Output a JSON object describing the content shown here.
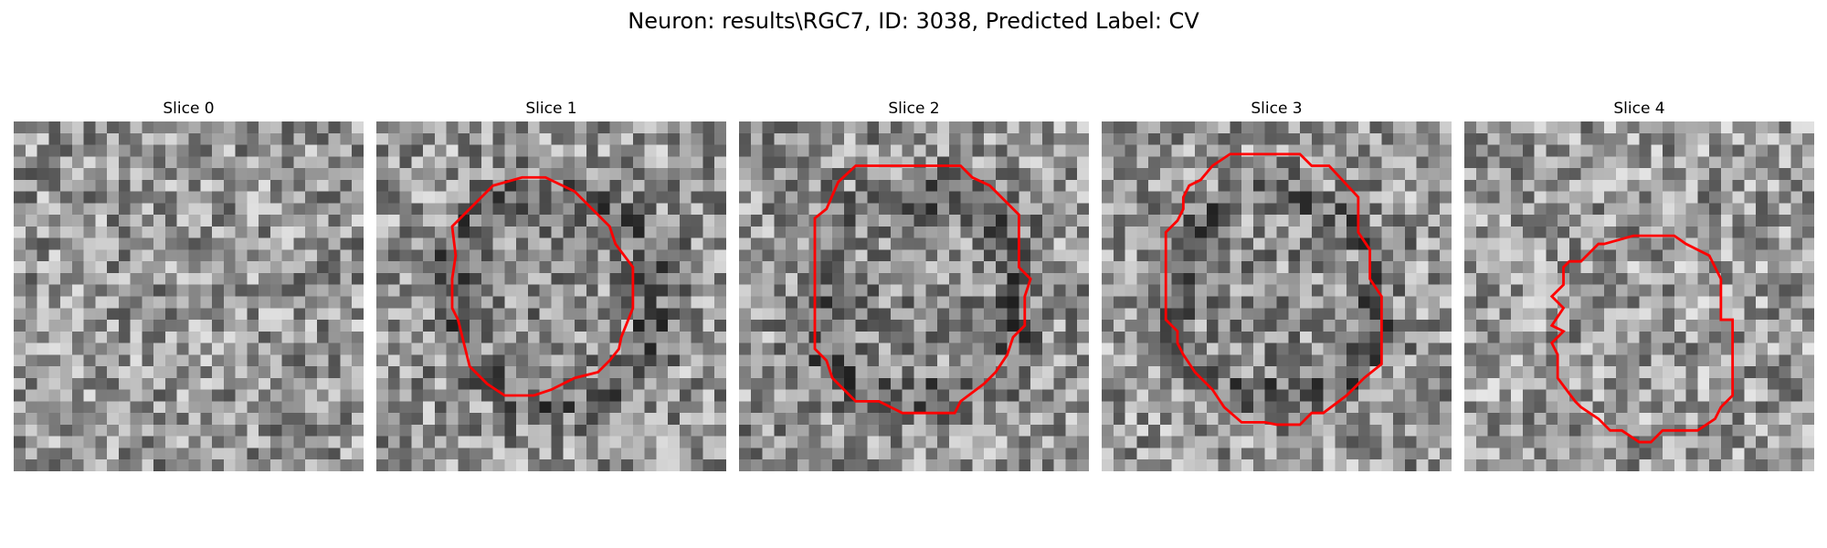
{
  "figure": {
    "title": "Neuron: results\\RGC7, ID: 3038, Predicted Label: CV"
  },
  "colors": {
    "contour": "#ff0000",
    "background": "#ffffff"
  },
  "grid": {
    "cells": 30
  },
  "panels": [
    {
      "title": "Slice 0",
      "seed": 11,
      "has_contour": false,
      "mean_gray": 150,
      "ring": false,
      "contour": []
    },
    {
      "title": "Slice 1",
      "seed": 23,
      "has_contour": true,
      "mean_gray": 140,
      "ring": true,
      "contour": [
        [
          10,
          5.5
        ],
        [
          12.5,
          4.8
        ],
        [
          14.5,
          4.8
        ],
        [
          17,
          6
        ],
        [
          18.5,
          7.5
        ],
        [
          20,
          9
        ],
        [
          20.5,
          10.5
        ],
        [
          22,
          12.5
        ],
        [
          22,
          16
        ],
        [
          21,
          18.5
        ],
        [
          20.8,
          19.5
        ],
        [
          20,
          20.5
        ],
        [
          19,
          21.5
        ],
        [
          17,
          22
        ],
        [
          15,
          23
        ],
        [
          13.5,
          23.5
        ],
        [
          11,
          23.5
        ],
        [
          9.5,
          22.5
        ],
        [
          8,
          21
        ],
        [
          7.5,
          19
        ],
        [
          7,
          17
        ],
        [
          6.5,
          16
        ],
        [
          6.5,
          13.5
        ],
        [
          6.8,
          11.5
        ],
        [
          6.5,
          9
        ],
        [
          7.5,
          8
        ],
        [
          8.5,
          7
        ],
        [
          9,
          6.5
        ]
      ]
    },
    {
      "title": "Slice 2",
      "seed": 37,
      "has_contour": true,
      "mean_gray": 138,
      "ring": true,
      "contour": [
        [
          10,
          3.8
        ],
        [
          19,
          3.8
        ],
        [
          20,
          4.8
        ],
        [
          21.5,
          5.5
        ],
        [
          24,
          8
        ],
        [
          24,
          12.5
        ],
        [
          25,
          13.5
        ],
        [
          24.5,
          15
        ],
        [
          24.5,
          17.5
        ],
        [
          23.5,
          18.5
        ],
        [
          23,
          20
        ],
        [
          22,
          21.5
        ],
        [
          21,
          22.5
        ],
        [
          19,
          24
        ],
        [
          18.5,
          25
        ],
        [
          14,
          25
        ],
        [
          13,
          24.5
        ],
        [
          12,
          24
        ],
        [
          10,
          24
        ],
        [
          9,
          23
        ],
        [
          8,
          22
        ],
        [
          7.5,
          20.5
        ],
        [
          6.5,
          19.5
        ],
        [
          6.5,
          8.3
        ],
        [
          7.5,
          7.5
        ],
        [
          8.5,
          5.2
        ]
      ]
    },
    {
      "title": "Slice 3",
      "seed": 53,
      "has_contour": true,
      "mean_gray": 142,
      "ring": true,
      "contour": [
        [
          11,
          2.8
        ],
        [
          17,
          2.8
        ],
        [
          18,
          3.8
        ],
        [
          19.5,
          3.8
        ],
        [
          22,
          6.5
        ],
        [
          22,
          9.5
        ],
        [
          23,
          11
        ],
        [
          23,
          13.5
        ],
        [
          24,
          15
        ],
        [
          24,
          20.8
        ],
        [
          22.5,
          22
        ],
        [
          21,
          23.5
        ],
        [
          19,
          25
        ],
        [
          18,
          25
        ],
        [
          17,
          26
        ],
        [
          15,
          26
        ],
        [
          14,
          25.8
        ],
        [
          12,
          25.8
        ],
        [
          10.5,
          24.5
        ],
        [
          9.5,
          23
        ],
        [
          8,
          21.5
        ],
        [
          7,
          20
        ],
        [
          6.5,
          19
        ],
        [
          6.5,
          18
        ],
        [
          5.5,
          17
        ],
        [
          5.5,
          9.5
        ],
        [
          6.5,
          8.5
        ],
        [
          7,
          7.5
        ],
        [
          7,
          6.5
        ],
        [
          7.5,
          5.5
        ],
        [
          8.5,
          5
        ],
        [
          9.5,
          3.8
        ]
      ]
    },
    {
      "title": "Slice 4",
      "seed": 71,
      "has_contour": true,
      "mean_gray": 155,
      "ring": false,
      "contour": [
        [
          12,
          10.5
        ],
        [
          14.5,
          9.8
        ],
        [
          18,
          9.8
        ],
        [
          19,
          10.5
        ],
        [
          21,
          11.5
        ],
        [
          21.5,
          12.5
        ],
        [
          22,
          13.5
        ],
        [
          22,
          17
        ],
        [
          23,
          17
        ],
        [
          23,
          23.5
        ],
        [
          22,
          24.5
        ],
        [
          21.5,
          25.5
        ],
        [
          20,
          26.5
        ],
        [
          17,
          26.5
        ],
        [
          16,
          27.5
        ],
        [
          15,
          27.5
        ],
        [
          13.5,
          26.5
        ],
        [
          12.5,
          26.5
        ],
        [
          11.5,
          25.5
        ],
        [
          10,
          24.5
        ],
        [
          9.5,
          24
        ],
        [
          8,
          22
        ],
        [
          8,
          20
        ],
        [
          7.5,
          19
        ],
        [
          8.5,
          18
        ],
        [
          7.5,
          17.5
        ],
        [
          8.5,
          16
        ],
        [
          7.5,
          15
        ],
        [
          8.5,
          14
        ],
        [
          8.5,
          12.5
        ],
        [
          9,
          12
        ],
        [
          10,
          12
        ],
        [
          11.5,
          10.5
        ]
      ]
    }
  ]
}
